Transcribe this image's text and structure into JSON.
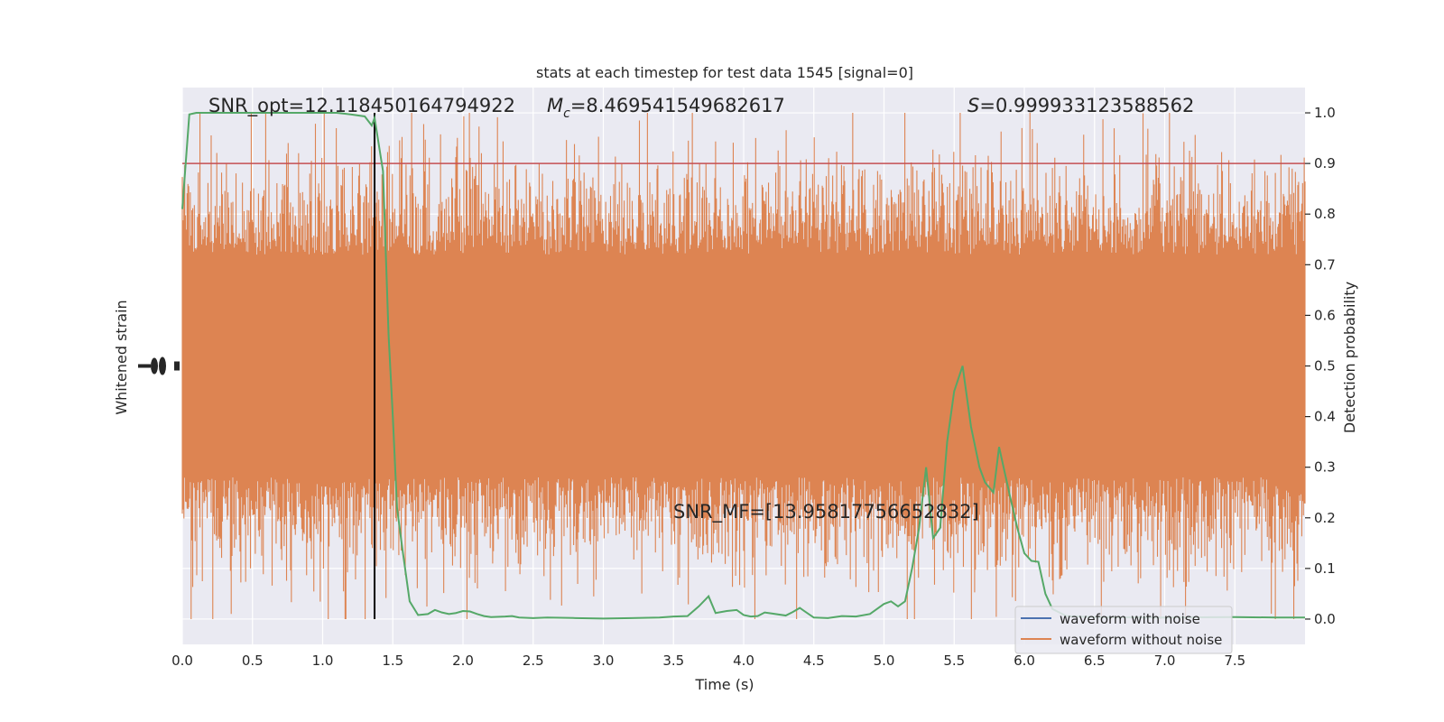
{
  "chart_data": {
    "type": "line",
    "title": "stats at each timestep for test data 1545 [signal=0]",
    "xlabel": "Time (s)",
    "ylabel_left": "Whitened strain",
    "ylabel_right": "Detection probability",
    "xlim": [
      0.0,
      8.0
    ],
    "ylim_right": [
      -0.05,
      1.05
    ],
    "x_ticks": [
      0.0,
      0.5,
      1.0,
      1.5,
      2.0,
      2.5,
      3.0,
      3.5,
      4.0,
      4.5,
      5.0,
      5.5,
      6.0,
      6.5,
      7.0,
      7.5
    ],
    "x_tick_labels": [
      "0.0",
      "0.5",
      "1.0",
      "1.5",
      "2.0",
      "2.5",
      "3.0",
      "3.5",
      "4.0",
      "4.5",
      "5.0",
      "5.5",
      "6.0",
      "6.5",
      "7.0",
      "7.5"
    ],
    "y_right_ticks": [
      0.0,
      0.1,
      0.2,
      0.3,
      0.4,
      0.5,
      0.6,
      0.7,
      0.8,
      0.9,
      1.0
    ],
    "y_right_tick_labels": [
      "0.0",
      "0.1",
      "0.2",
      "0.3",
      "0.4",
      "0.5",
      "0.6",
      "0.7",
      "0.8",
      "0.9",
      "1.0"
    ],
    "threshold": 0.9,
    "vertical_marker_x": 1.37,
    "grid": true,
    "legend_position": "lower-right",
    "annotations": [
      {
        "text": "SNR_opt=12.118450164794922",
        "x": 0.2,
        "y": 1.0
      },
      {
        "text": "=8.469541549682617",
        "prefix": "M",
        "subscript": "c",
        "x": 2.6,
        "y": 1.0
      },
      {
        "text": "=0.999933123588562",
        "prefix": "S",
        "x": 5.6,
        "y": 1.0
      },
      {
        "text": "SNR_MF=[13.95817756652832]",
        "x": 3.5,
        "y": 0.2
      }
    ],
    "series": [
      {
        "name": "waveform with noise",
        "color": "#4c72b0",
        "type": "noise-band",
        "core_range": [
          0.3,
          0.7
        ],
        "spike_range": [
          0.0,
          1.0
        ]
      },
      {
        "name": "waveform without noise",
        "color": "#dd8452",
        "type": "noise-band",
        "core_range": [
          0.3,
          0.7
        ],
        "spike_range": [
          0.0,
          1.0
        ]
      },
      {
        "name": "detection probability",
        "color": "#55a868",
        "x": [
          0.0,
          0.05,
          0.1,
          0.15,
          0.2,
          0.3,
          0.5,
          0.7,
          0.9,
          1.0,
          1.1,
          1.2,
          1.3,
          1.35,
          1.37,
          1.43,
          1.47,
          1.5,
          1.53,
          1.57,
          1.62,
          1.68,
          1.75,
          1.8,
          1.85,
          1.9,
          1.95,
          2.0,
          2.05,
          2.1,
          2.15,
          2.2,
          2.3,
          2.35,
          2.4,
          2.5,
          2.6,
          2.8,
          3.0,
          3.2,
          3.4,
          3.5,
          3.6,
          3.68,
          3.75,
          3.8,
          3.88,
          3.95,
          4.0,
          4.05,
          4.1,
          4.15,
          4.2,
          4.3,
          4.35,
          4.4,
          4.5,
          4.6,
          4.7,
          4.8,
          4.9,
          5.0,
          5.05,
          5.1,
          5.15,
          5.2,
          5.25,
          5.3,
          5.35,
          5.4,
          5.45,
          5.5,
          5.56,
          5.62,
          5.68,
          5.72,
          5.78,
          5.82,
          5.9,
          5.95,
          6.0,
          6.05,
          6.1,
          6.15,
          6.2,
          6.3,
          6.5,
          7.0,
          7.5,
          7.8,
          8.0
        ],
        "y": [
          0.81,
          0.997,
          1.0,
          1.0,
          1.0,
          1.0,
          1.0,
          1.0,
          1.0,
          1.0,
          1.0,
          0.997,
          0.993,
          0.975,
          0.99,
          0.885,
          0.56,
          0.4,
          0.22,
          0.135,
          0.035,
          0.008,
          0.01,
          0.018,
          0.013,
          0.01,
          0.012,
          0.016,
          0.015,
          0.01,
          0.006,
          0.004,
          0.005,
          0.006,
          0.003,
          0.002,
          0.003,
          0.002,
          0.001,
          0.002,
          0.003,
          0.005,
          0.006,
          0.025,
          0.045,
          0.012,
          0.016,
          0.018,
          0.008,
          0.005,
          0.006,
          0.013,
          0.011,
          0.007,
          0.014,
          0.022,
          0.003,
          0.002,
          0.006,
          0.005,
          0.01,
          0.03,
          0.035,
          0.025,
          0.035,
          0.1,
          0.18,
          0.3,
          0.16,
          0.18,
          0.35,
          0.45,
          0.5,
          0.38,
          0.3,
          0.27,
          0.25,
          0.34,
          0.24,
          0.18,
          0.13,
          0.115,
          0.113,
          0.05,
          0.02,
          0.006,
          0.004,
          0.003,
          0.004,
          0.003,
          0.003
        ]
      }
    ]
  }
}
